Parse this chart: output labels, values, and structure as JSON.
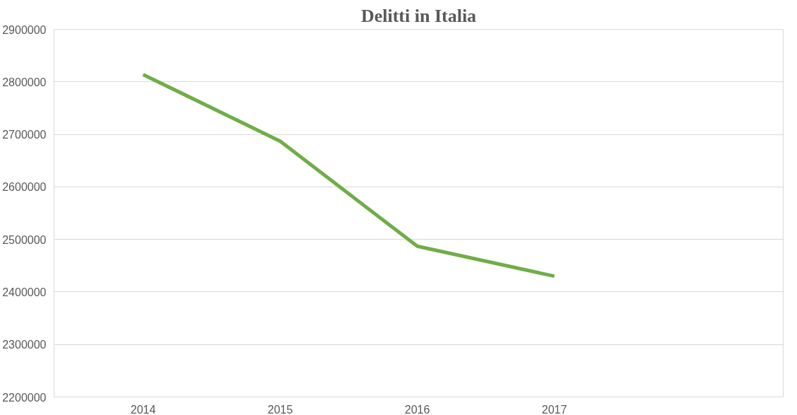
{
  "chart_data": {
    "type": "line",
    "title": "Delitti in Italia",
    "categories": [
      "2014",
      "2015",
      "2016",
      "2017",
      null
    ],
    "series": [
      {
        "color": "#70ad47",
        "values": [
          2814000,
          2687000,
          2487000,
          2430000,
          null
        ]
      }
    ],
    "ylim": [
      2200000,
      2900000
    ],
    "yticks": [
      2200000,
      2300000,
      2400000,
      2500000,
      2600000,
      2700000,
      2800000,
      2900000
    ],
    "grid": "y",
    "marker": "none",
    "line_style": "solid"
  }
}
